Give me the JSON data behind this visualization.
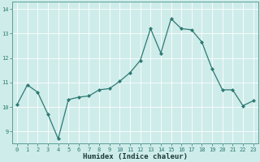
{
  "x": [
    0,
    1,
    2,
    3,
    4,
    5,
    6,
    7,
    8,
    9,
    10,
    11,
    12,
    13,
    14,
    15,
    16,
    17,
    18,
    19,
    20,
    21,
    22,
    23
  ],
  "y": [
    10.1,
    10.9,
    10.6,
    9.7,
    8.7,
    10.3,
    10.4,
    10.45,
    10.7,
    10.75,
    11.05,
    11.4,
    11.9,
    13.2,
    12.2,
    13.6,
    13.2,
    13.15,
    12.65,
    11.55,
    10.7,
    10.7,
    10.05,
    10.25
  ],
  "line_color": "#2d7a72",
  "marker": "D",
  "marker_size": 2,
  "bg_color": "#ceecea",
  "grid_color": "#ffffff",
  "xlabel": "Humidex (Indice chaleur)",
  "ylim": [
    8.5,
    14.3
  ],
  "xlim": [
    -0.5,
    23.5
  ],
  "yticks": [
    9,
    10,
    11,
    12,
    13,
    14
  ],
  "xticks": [
    0,
    1,
    2,
    3,
    4,
    5,
    6,
    7,
    8,
    9,
    10,
    11,
    12,
    13,
    14,
    15,
    16,
    17,
    18,
    19,
    20,
    21,
    22,
    23
  ],
  "tick_fontsize": 5.0,
  "xlabel_fontsize": 6.5,
  "spine_color": "#5a9e95",
  "tick_color": "#2d7a72"
}
